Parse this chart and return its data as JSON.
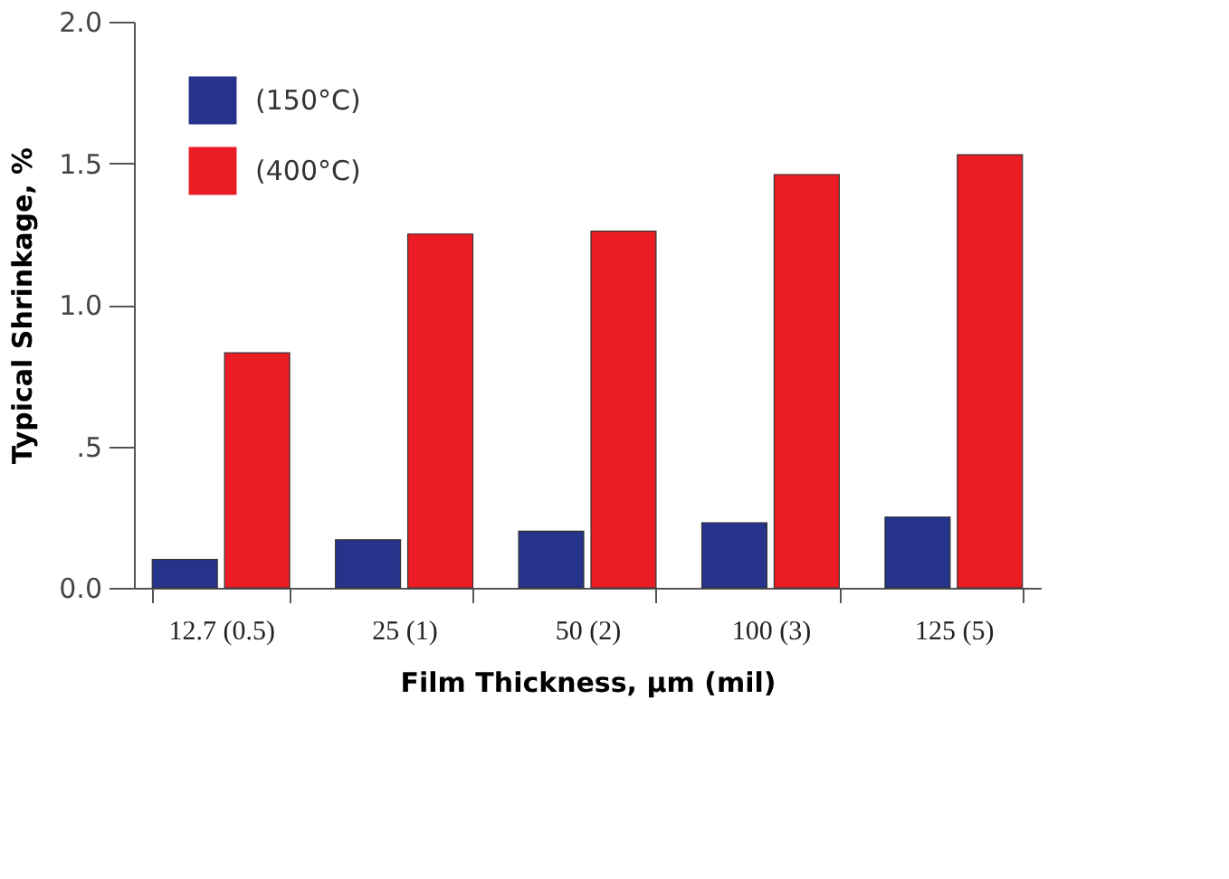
{
  "chart_data": {
    "type": "bar",
    "xlabel": "Film Thickness, µm (mil)",
    "ylabel": "Typical Shrinkage, %",
    "categories": [
      "12.7 (0.5)",
      "25 (1)",
      "50 (2)",
      "100 (3)",
      "125 (5)"
    ],
    "series": [
      {
        "name": "(150°C)",
        "color": "#25338a",
        "values": [
          0.1,
          0.17,
          0.2,
          0.23,
          0.25
        ]
      },
      {
        "name": "(400°C)",
        "color": "#ec1c24",
        "values": [
          0.83,
          1.25,
          1.26,
          1.46,
          1.53
        ]
      }
    ],
    "ylim": [
      0,
      2.0
    ],
    "yticks": [
      {
        "value": 0,
        "label": "0.0"
      },
      {
        "value": 0.5,
        "label": ".5"
      },
      {
        "value": 1.0,
        "label": "1.0"
      },
      {
        "value": 1.5,
        "label": "1.5"
      },
      {
        "value": 2.0,
        "label": "2.0"
      }
    ],
    "grid": false,
    "legend": "top left"
  }
}
